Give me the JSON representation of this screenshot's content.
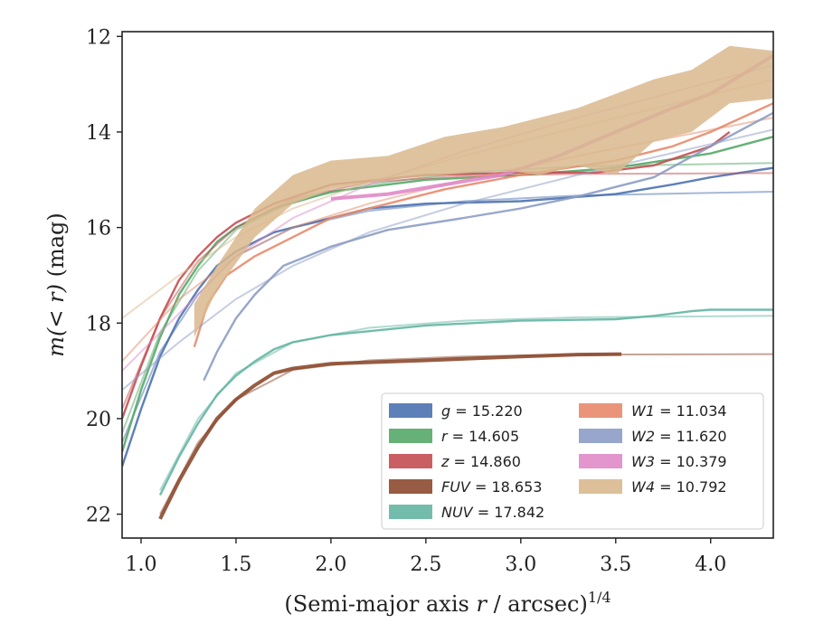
{
  "chart_data": {
    "type": "line",
    "xlabel": "(Semi-major axis r / arcsec)",
    "xlabel_prefix": "(Semi-major axis ",
    "xlabel_var": "r",
    "xlabel_suffix": " / arcsec)",
    "xlabel_superscript": "1/4",
    "ylabel": "m(< r) (mag)",
    "ylabel_math": "m(< r)",
    "ylabel_unit": "(mag)",
    "xlim": [
      0.9,
      4.33
    ],
    "ylim": [
      22.5,
      11.9
    ],
    "y_inverted": true,
    "xticks": [
      "1.0",
      "1.5",
      "2.0",
      "2.5",
      "3.0",
      "3.5",
      "4.0"
    ],
    "yticks": [
      "12",
      "14",
      "16",
      "18",
      "20",
      "22"
    ],
    "legend_position": "lower-right",
    "series": [
      {
        "name": "g",
        "label": "g = 15.220",
        "color": "#4c72b0",
        "asymptote": 15.22,
        "points": [
          [
            0.9,
            21.0
          ],
          [
            1.0,
            19.8
          ],
          [
            1.1,
            18.7
          ],
          [
            1.2,
            17.9
          ],
          [
            1.3,
            17.3
          ],
          [
            1.4,
            16.8
          ],
          [
            1.5,
            16.5
          ],
          [
            1.6,
            16.3
          ],
          [
            1.7,
            16.1
          ],
          [
            1.8,
            16.0
          ],
          [
            1.9,
            15.9
          ],
          [
            2.0,
            15.8
          ],
          [
            2.2,
            15.6
          ],
          [
            2.5,
            15.5
          ],
          [
            3.0,
            15.45
          ],
          [
            3.5,
            15.3
          ],
          [
            3.8,
            15.1
          ],
          [
            4.0,
            14.95
          ],
          [
            4.33,
            14.75
          ]
        ],
        "fit": [
          [
            0.9,
            20.5
          ],
          [
            1.1,
            18.6
          ],
          [
            1.3,
            17.4
          ],
          [
            1.5,
            16.6
          ],
          [
            1.8,
            16.0
          ],
          [
            2.2,
            15.65
          ],
          [
            2.7,
            15.45
          ],
          [
            3.3,
            15.33
          ],
          [
            4.33,
            15.25
          ]
        ]
      },
      {
        "name": "r",
        "label": "r = 14.605",
        "color": "#55a868",
        "asymptote": 14.605,
        "points": [
          [
            0.9,
            20.7
          ],
          [
            1.0,
            19.4
          ],
          [
            1.1,
            18.3
          ],
          [
            1.2,
            17.4
          ],
          [
            1.3,
            16.8
          ],
          [
            1.4,
            16.3
          ],
          [
            1.5,
            16.0
          ],
          [
            1.7,
            15.6
          ],
          [
            2.0,
            15.25
          ],
          [
            2.5,
            15.0
          ],
          [
            3.0,
            14.9
          ],
          [
            3.5,
            14.75
          ],
          [
            4.0,
            14.45
          ],
          [
            4.33,
            14.1
          ]
        ],
        "fit": [
          [
            0.9,
            20.3
          ],
          [
            1.1,
            18.2
          ],
          [
            1.3,
            16.9
          ],
          [
            1.5,
            16.05
          ],
          [
            1.8,
            15.45
          ],
          [
            2.2,
            15.1
          ],
          [
            2.7,
            14.85
          ],
          [
            3.3,
            14.72
          ],
          [
            4.33,
            14.65
          ]
        ]
      },
      {
        "name": "z",
        "label": "z = 14.860",
        "color": "#c44e52",
        "asymptote": 14.86,
        "points": [
          [
            0.9,
            20.0
          ],
          [
            1.0,
            18.9
          ],
          [
            1.1,
            17.9
          ],
          [
            1.2,
            17.1
          ],
          [
            1.3,
            16.6
          ],
          [
            1.4,
            16.2
          ],
          [
            1.5,
            15.9
          ],
          [
            1.7,
            15.5
          ],
          [
            2.0,
            15.1
          ],
          [
            2.5,
            14.9
          ],
          [
            3.0,
            14.85
          ],
          [
            3.4,
            14.85
          ],
          [
            3.7,
            14.7
          ],
          [
            4.0,
            14.3
          ],
          [
            4.1,
            14.0
          ]
        ],
        "fit": [
          [
            0.9,
            19.8
          ],
          [
            1.1,
            17.9
          ],
          [
            1.3,
            16.7
          ],
          [
            1.5,
            16.0
          ],
          [
            1.8,
            15.4
          ],
          [
            2.2,
            15.05
          ],
          [
            2.7,
            14.92
          ],
          [
            3.3,
            14.88
          ],
          [
            4.33,
            14.86
          ]
        ]
      },
      {
        "name": "FUV",
        "label": "FUV = 18.653",
        "color": "#8c4a2f",
        "asymptote": 18.653,
        "points": [
          [
            1.1,
            22.1
          ],
          [
            1.2,
            21.3
          ],
          [
            1.3,
            20.6
          ],
          [
            1.4,
            20.0
          ],
          [
            1.5,
            19.6
          ],
          [
            1.6,
            19.3
          ],
          [
            1.7,
            19.05
          ],
          [
            1.8,
            18.95
          ],
          [
            2.0,
            18.85
          ],
          [
            2.5,
            18.78
          ],
          [
            3.0,
            18.7
          ],
          [
            3.3,
            18.66
          ],
          [
            3.53,
            18.65
          ]
        ],
        "fit": [
          [
            1.1,
            22.0
          ],
          [
            1.3,
            20.5
          ],
          [
            1.5,
            19.6
          ],
          [
            1.8,
            18.98
          ],
          [
            2.2,
            18.78
          ],
          [
            2.7,
            18.7
          ],
          [
            3.3,
            18.66
          ],
          [
            4.33,
            18.65
          ]
        ]
      },
      {
        "name": "NUV",
        "label": "NUV = 17.842",
        "color": "#64b5a2",
        "asymptote": 17.842,
        "points": [
          [
            1.1,
            21.6
          ],
          [
            1.2,
            20.8
          ],
          [
            1.3,
            20.1
          ],
          [
            1.4,
            19.5
          ],
          [
            1.5,
            19.1
          ],
          [
            1.6,
            18.8
          ],
          [
            1.7,
            18.55
          ],
          [
            1.8,
            18.4
          ],
          [
            2.0,
            18.25
          ],
          [
            2.5,
            18.05
          ],
          [
            3.0,
            17.95
          ],
          [
            3.5,
            17.92
          ],
          [
            3.7,
            17.85
          ],
          [
            3.9,
            17.75
          ],
          [
            4.0,
            17.72
          ],
          [
            4.33,
            17.72
          ]
        ],
        "fit": [
          [
            1.1,
            21.5
          ],
          [
            1.3,
            20.0
          ],
          [
            1.5,
            19.05
          ],
          [
            1.8,
            18.4
          ],
          [
            2.2,
            18.1
          ],
          [
            2.7,
            17.95
          ],
          [
            3.3,
            17.88
          ],
          [
            4.33,
            17.85
          ]
        ]
      },
      {
        "name": "W1",
        "label": "W1 = 11.034",
        "color": "#e8896b",
        "asymptote": 11.034,
        "points": [
          [
            1.28,
            18.5
          ],
          [
            1.35,
            17.6
          ],
          [
            1.45,
            17.0
          ],
          [
            1.6,
            16.6
          ],
          [
            1.8,
            16.2
          ],
          [
            2.0,
            15.8
          ],
          [
            2.3,
            15.5
          ],
          [
            2.6,
            15.2
          ],
          [
            3.0,
            14.9
          ],
          [
            3.5,
            14.6
          ],
          [
            3.8,
            14.3
          ],
          [
            4.0,
            14.0
          ],
          [
            4.33,
            13.4
          ]
        ],
        "fit": [
          [
            0.9,
            18.8
          ],
          [
            1.2,
            17.5
          ],
          [
            1.5,
            16.6
          ],
          [
            1.8,
            16.0
          ],
          [
            2.2,
            15.5
          ],
          [
            2.7,
            15.0
          ],
          [
            3.3,
            14.5
          ],
          [
            4.33,
            13.7
          ]
        ]
      },
      {
        "name": "W2",
        "label": "W2 = 11.620",
        "color": "#8c9cc4",
        "asymptote": 11.62,
        "points": [
          [
            1.33,
            19.2
          ],
          [
            1.4,
            18.6
          ],
          [
            1.5,
            17.9
          ],
          [
            1.6,
            17.4
          ],
          [
            1.75,
            16.8
          ],
          [
            2.0,
            16.4
          ],
          [
            2.3,
            16.05
          ],
          [
            2.7,
            15.8
          ],
          [
            3.0,
            15.6
          ],
          [
            3.3,
            15.35
          ],
          [
            3.7,
            14.95
          ],
          [
            4.0,
            14.3
          ],
          [
            4.33,
            13.6
          ]
        ],
        "fit": [
          [
            0.9,
            19.4
          ],
          [
            1.2,
            18.4
          ],
          [
            1.5,
            17.5
          ],
          [
            1.8,
            16.8
          ],
          [
            2.2,
            16.1
          ],
          [
            2.7,
            15.5
          ],
          [
            3.3,
            14.9
          ],
          [
            4.33,
            13.95
          ]
        ]
      },
      {
        "name": "W3",
        "label": "W3 = 10.379",
        "color": "#e08ac8",
        "asymptote": 10.379,
        "points": [
          [
            2.0,
            15.4
          ],
          [
            2.3,
            15.3
          ],
          [
            2.6,
            15.1
          ],
          [
            2.9,
            14.9
          ],
          [
            3.2,
            14.5
          ],
          [
            3.5,
            14.0
          ],
          [
            3.8,
            13.5
          ],
          [
            4.0,
            13.2
          ],
          [
            4.33,
            12.4
          ]
        ],
        "fit": [
          [
            0.9,
            19.0
          ],
          [
            1.2,
            17.8
          ],
          [
            1.5,
            16.6
          ],
          [
            1.8,
            15.8
          ],
          [
            2.2,
            15.1
          ],
          [
            2.7,
            14.4
          ],
          [
            3.3,
            13.7
          ],
          [
            4.33,
            12.6
          ]
        ]
      },
      {
        "name": "W4",
        "label": "W4 = 10.792",
        "color": "#d9b98e",
        "asymptote": 10.792,
        "band": [
          [
            1.28,
            18.3,
            17.6
          ],
          [
            1.4,
            17.3,
            16.8
          ],
          [
            1.6,
            16.2,
            15.6
          ],
          [
            1.8,
            15.5,
            14.9
          ],
          [
            2.0,
            15.2,
            14.6
          ],
          [
            2.3,
            15.0,
            14.5
          ],
          [
            2.6,
            14.9,
            14.1
          ],
          [
            2.9,
            14.8,
            13.9
          ],
          [
            3.1,
            14.9,
            13.7
          ],
          [
            3.3,
            14.7,
            13.5
          ],
          [
            3.5,
            14.9,
            13.2
          ],
          [
            3.7,
            14.2,
            12.9
          ],
          [
            3.9,
            14.0,
            12.7
          ],
          [
            4.1,
            13.4,
            12.2
          ],
          [
            4.33,
            13.3,
            12.3
          ]
        ],
        "fit": [
          [
            0.9,
            17.9
          ],
          [
            1.2,
            17.0
          ],
          [
            1.5,
            16.2
          ],
          [
            1.8,
            15.6
          ],
          [
            2.2,
            15.05
          ],
          [
            2.7,
            14.5
          ],
          [
            3.3,
            13.9
          ],
          [
            4.33,
            12.9
          ]
        ]
      }
    ],
    "legend": [
      {
        "label_var": "g",
        "label_rest": " = 15.220",
        "color": "#4c72b0"
      },
      {
        "label_var": "r",
        "label_rest": " = 14.605",
        "color": "#55a868"
      },
      {
        "label_var": "z",
        "label_rest": " = 14.860",
        "color": "#c44e52"
      },
      {
        "label_var": "FUV",
        "label_rest": " = 18.653",
        "color": "#8c4a2f"
      },
      {
        "label_var": "NUV",
        "label_rest": " = 17.842",
        "color": "#64b5a2"
      },
      {
        "label_var": "W1",
        "label_rest": " = 11.034",
        "color": "#e8896b"
      },
      {
        "label_var": "W2",
        "label_rest": " = 11.620",
        "color": "#8c9cc4"
      },
      {
        "label_var": "W3",
        "label_rest": " = 10.379",
        "color": "#e08ac8"
      },
      {
        "label_var": "W4",
        "label_rest": " = 10.792",
        "color": "#d9b98e"
      }
    ]
  }
}
